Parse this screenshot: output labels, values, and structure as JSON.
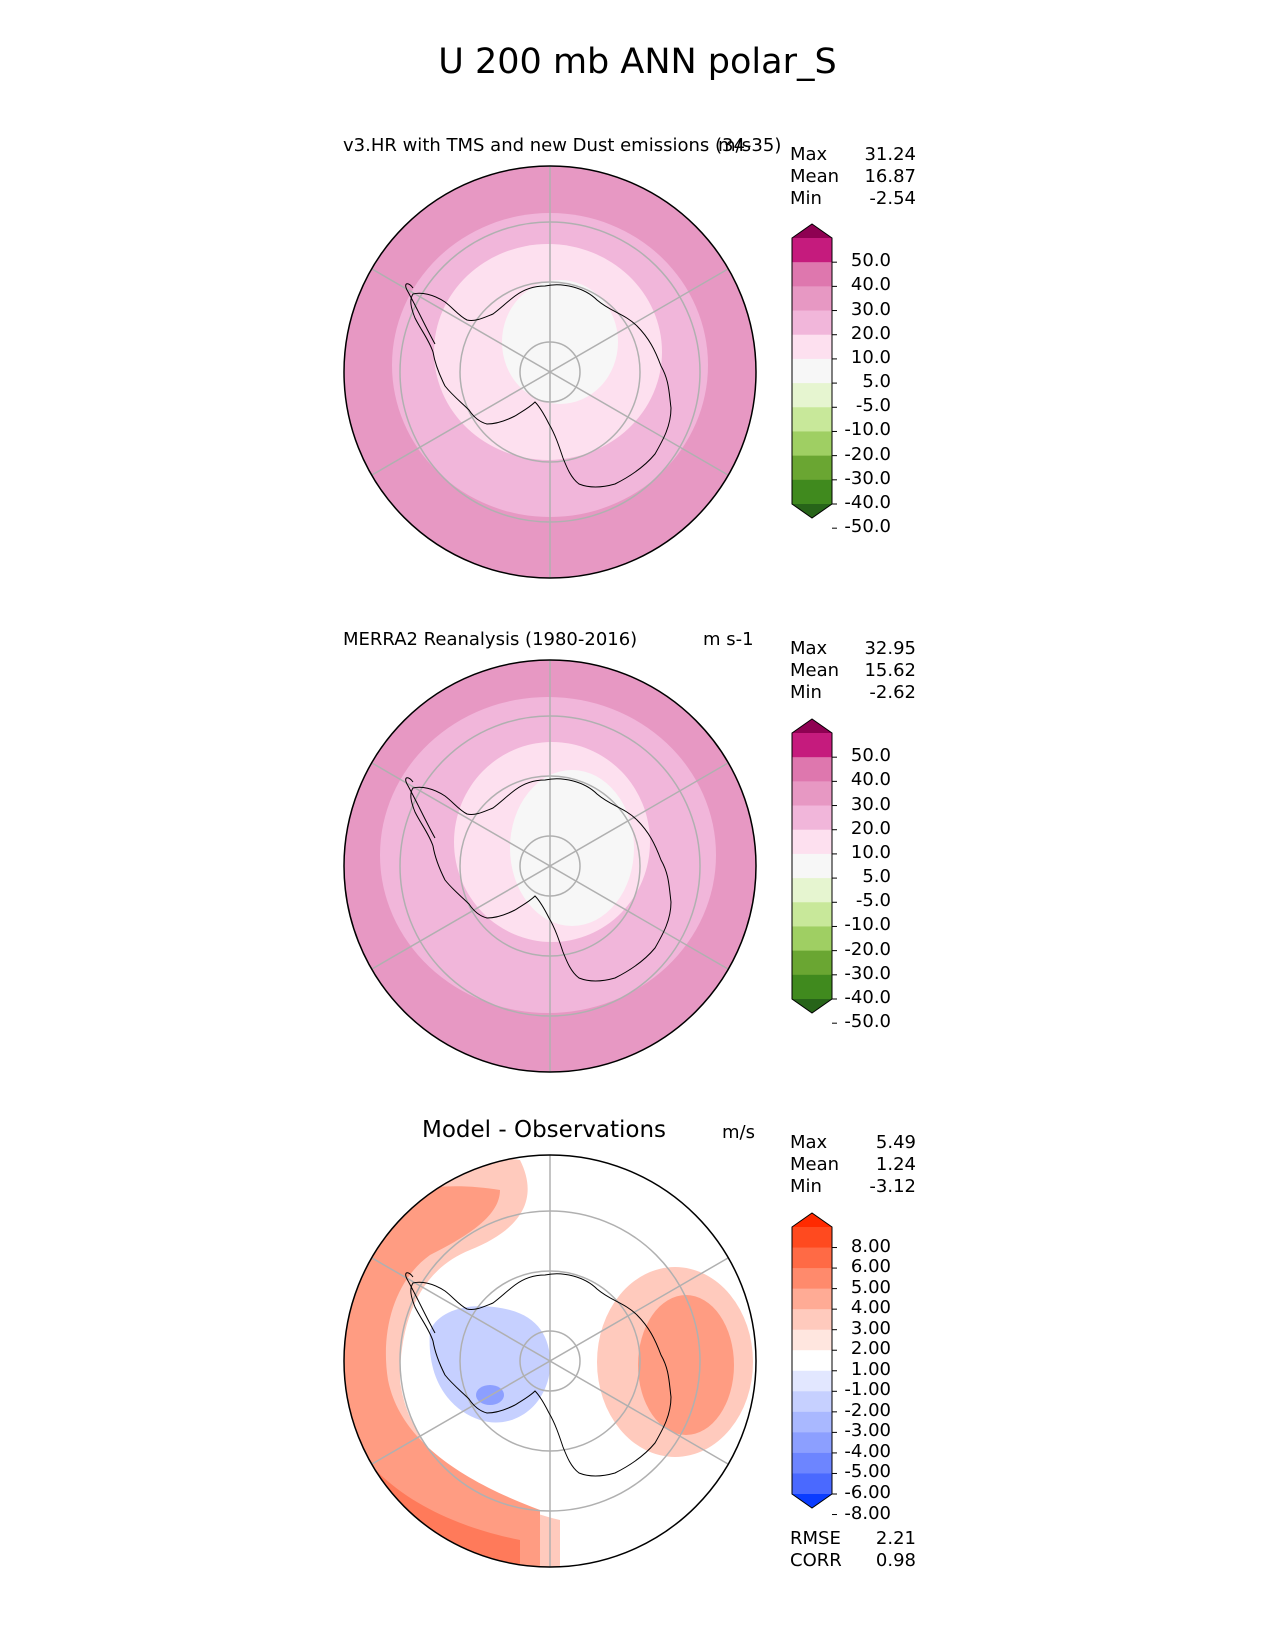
{
  "suptitle": "U 200 mb ANN polar_S",
  "panels": [
    {
      "title": "v3.HR with TMS and new Dust emissions (34-35)",
      "units": "m/s",
      "stats": [
        {
          "label": "Max",
          "value": "31.24"
        },
        {
          "label": "Mean",
          "value": "16.87"
        },
        {
          "label": "Min",
          "value": "-2.54"
        }
      ],
      "colorbar": {
        "labels": [
          "50.0",
          "40.0",
          "30.0",
          "20.0",
          "10.0",
          "5.0",
          "-5.0",
          "-10.0",
          "-20.0",
          "-30.0",
          "-40.0",
          "-50.0"
        ],
        "colors": [
          "#8e0152",
          "#c51b7d",
          "#de77ae",
          "#e798c3",
          "#f1b6da",
          "#fde0ef",
          "#f7f7f7",
          "#e6f5d0",
          "#c8e89a",
          "#9fcf63",
          "#6aa632",
          "#408a1e",
          "#276419"
        ]
      }
    },
    {
      "title": "MERRA2 Reanalysis (1980-2016)",
      "units": "m s-1",
      "stats": [
        {
          "label": "Max",
          "value": "32.95"
        },
        {
          "label": "Mean",
          "value": "15.62"
        },
        {
          "label": "Min",
          "value": "-2.62"
        }
      ],
      "colorbar": {
        "labels": [
          "50.0",
          "40.0",
          "30.0",
          "20.0",
          "10.0",
          "5.0",
          "-5.0",
          "-10.0",
          "-20.0",
          "-30.0",
          "-40.0",
          "-50.0"
        ],
        "colors": [
          "#8e0152",
          "#c51b7d",
          "#de77ae",
          "#e798c3",
          "#f1b6da",
          "#fde0ef",
          "#f7f7f7",
          "#e6f5d0",
          "#c8e89a",
          "#9fcf63",
          "#6aa632",
          "#408a1e",
          "#276419"
        ]
      }
    },
    {
      "title": "Model - Observations",
      "units": "m/s",
      "stats": [
        {
          "label": "Max",
          "value": "5.49"
        },
        {
          "label": "Mean",
          "value": "1.24"
        },
        {
          "label": "Min",
          "value": "-3.12"
        }
      ],
      "extra_stats": [
        {
          "label": "RMSE",
          "value": "2.21"
        },
        {
          "label": "CORR",
          "value": "0.98"
        }
      ],
      "colorbar": {
        "labels": [
          "8.00",
          "6.00",
          "5.00",
          "4.00",
          "3.00",
          "2.00",
          "1.00",
          "-1.00",
          "-2.00",
          "-3.00",
          "-4.00",
          "-5.00",
          "-6.00",
          "-8.00"
        ],
        "colors": [
          "#ff2a00",
          "#ff4a1f",
          "#ff6a45",
          "#ff8a6c",
          "#ffab95",
          "#ffcabd",
          "#ffe6df",
          "#ffffff",
          "#e2e7ff",
          "#c6d0ff",
          "#a9b8ff",
          "#8c9fff",
          "#6d85ff",
          "#4a69ff",
          "#0a3cff"
        ]
      }
    }
  ]
}
